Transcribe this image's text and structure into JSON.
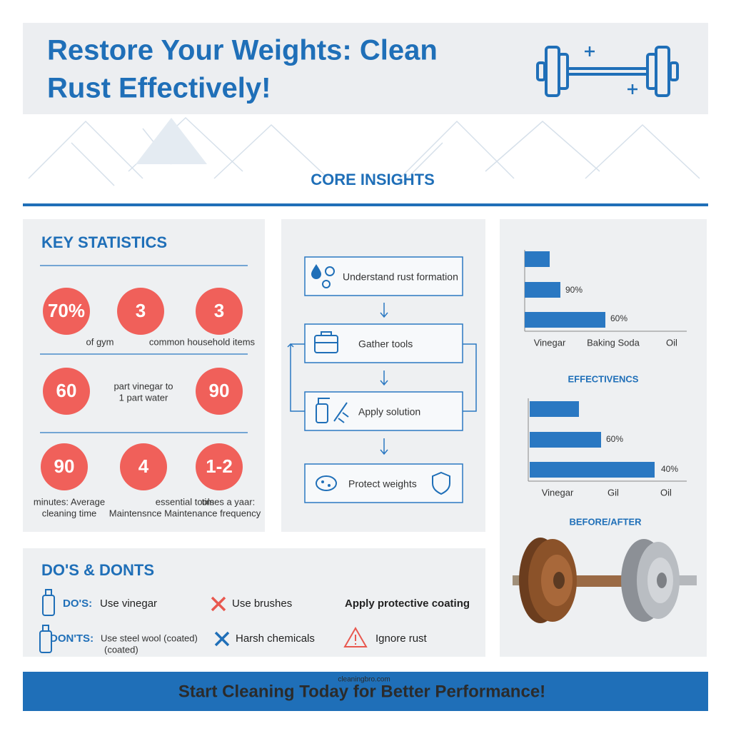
{
  "header": {
    "title_lines": [
      "Restore Your Weights: Clean",
      "Rust Effectively!"
    ]
  },
  "section_title": "CORE INSIGHTS",
  "key_statistics": {
    "title": "KEY STATISTICS",
    "stats": [
      "70%",
      "3",
      "3",
      "60",
      "90",
      "90",
      "4",
      "1-2"
    ],
    "captions": [
      [
        "of gym"
      ],
      [
        "common household items"
      ],
      [
        "part vinegar to",
        "1 part water"
      ],
      [
        "minutes: Average",
        "cleaning time"
      ],
      [
        "essential tools",
        "Maintensnce Maintenance frequency"
      ],
      [
        "times a yaar:"
      ]
    ]
  },
  "flow": {
    "steps": [
      "Understand rust formation",
      "Gather tools",
      "Apply solution",
      "Protect weights"
    ]
  },
  "chart_one": {
    "bar_labels": [
      "90%",
      "60%"
    ],
    "categories": [
      "Vinegar",
      "Baking Soda",
      "Oil"
    ]
  },
  "chart_two": {
    "title": "EFFECTIVENCS",
    "bar_labels": [
      "60%",
      "40%"
    ],
    "categories": [
      "Vinegar",
      "Gil",
      "Oil"
    ]
  },
  "before_after": "BEFORE/AFTER",
  "dos_donts": {
    "title": "DO'S & DONTS",
    "dos_label": "DO'S:",
    "donts_label": "DON'TS:",
    "do_items": [
      "Use vinegar",
      "Use brushes",
      "Apply protective coating"
    ],
    "dont_items": [
      [
        "Use steel wool (coated)",
        "(coated)"
      ],
      [
        "Harsh chemicals"
      ],
      [
        "Ignore rust"
      ]
    ]
  },
  "footer": {
    "source": "cleaningbro.com",
    "cta": "Start Cleaning Today for Better Performance!"
  }
}
